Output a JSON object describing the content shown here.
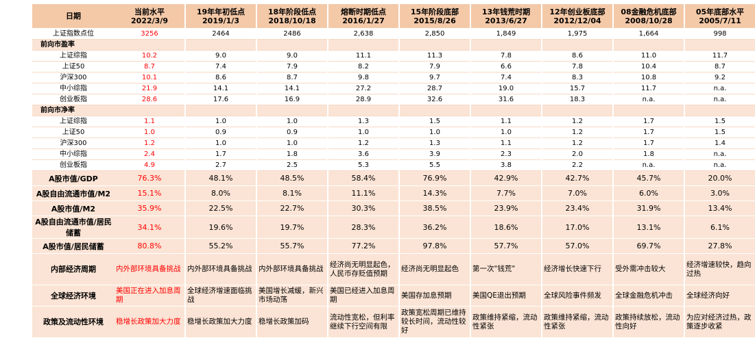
{
  "header": {
    "label": "日期",
    "columns": [
      {
        "name": "当前水平",
        "date": "2022/3/9"
      },
      {
        "name": "19年年初低点",
        "date": "2019/1/3"
      },
      {
        "name": "18年阶段低点",
        "date": "2018/10/18"
      },
      {
        "name": "熔断时期低点",
        "date": "2016/1/27"
      },
      {
        "name": "15年阶段底部",
        "date": "2015/8/26"
      },
      {
        "name": "13年钱荒时期",
        "date": "2013/6/27"
      },
      {
        "name": "12年创业板底部",
        "date": "2012/12/04"
      },
      {
        "name": "08金融危机底部",
        "date": "2008/10/28"
      },
      {
        "name": "05年底部水平",
        "date": "2005/7/11"
      }
    ]
  },
  "rows": [
    {
      "kind": "sm",
      "label": "上证指数点位",
      "values": [
        "3256",
        "2464",
        "2486",
        "2,638",
        "2,850",
        "1,849",
        "1,975",
        "1,664",
        "998"
      ]
    },
    {
      "kind": "sec",
      "label": "前向市盈率",
      "values": [
        "",
        "",
        "",
        "",
        "",
        "",
        "",
        "",
        ""
      ]
    },
    {
      "kind": "sm",
      "label": "上证综指",
      "values": [
        "10.2",
        "9.0",
        "9.0",
        "11.1",
        "11.3",
        "7.8",
        "8.6",
        "11.0",
        "11.7"
      ]
    },
    {
      "kind": "sm",
      "label": "上证50",
      "values": [
        "8.7",
        "7.4",
        "7.9",
        "8.2",
        "7.9",
        "6.6",
        "7.8",
        "10.4",
        "8.7"
      ]
    },
    {
      "kind": "sm",
      "label": "沪深300",
      "values": [
        "10.1",
        "8.6",
        "8.7",
        "9.8",
        "9.7",
        "7.4",
        "8.3",
        "10.8",
        "9.2"
      ]
    },
    {
      "kind": "sm",
      "label": "中小综指",
      "values": [
        "21.9",
        "14.1",
        "14.1",
        "27.2",
        "28.7",
        "19.0",
        "15.7",
        "11.7",
        "n.a."
      ]
    },
    {
      "kind": "sm",
      "label": "创业板指",
      "values": [
        "28.6",
        "17.6",
        "16.9",
        "28.9",
        "32.6",
        "31.6",
        "18.3",
        "n.a.",
        "n.a."
      ]
    },
    {
      "kind": "sec",
      "label": "前向市净率",
      "values": [
        "",
        "",
        "",
        "",
        "",
        "",
        "",
        "",
        ""
      ]
    },
    {
      "kind": "sm",
      "label": "上证综指",
      "values": [
        "1.1",
        "1.0",
        "1.0",
        "1.3",
        "1.5",
        "1.1",
        "1.2",
        "1.7",
        "1.5"
      ]
    },
    {
      "kind": "sm",
      "label": "上证50",
      "values": [
        "1.0",
        "0.9",
        "0.9",
        "1.0",
        "1.0",
        "1.0",
        "1.2",
        "1.7",
        "1.5"
      ]
    },
    {
      "kind": "sm",
      "label": "沪深300",
      "values": [
        "1.2",
        "1.0",
        "1.0",
        "1.2",
        "1.3",
        "1.1",
        "1.2",
        "1.7",
        "1.4"
      ]
    },
    {
      "kind": "sm",
      "label": "中小综指",
      "values": [
        "2.4",
        "1.7",
        "1.8",
        "3.6",
        "3.9",
        "2.3",
        "2.0",
        "1.8",
        "n.a."
      ]
    },
    {
      "kind": "sm",
      "label": "创业板指",
      "values": [
        "4.9",
        "2.7",
        "2.5",
        "5.3",
        "5.5",
        "3.8",
        "2.2",
        "n.a.",
        "n.a."
      ]
    },
    {
      "kind": "med",
      "label": "A股市值/GDP",
      "values": [
        "76.3%",
        "48.1%",
        "48.5%",
        "58.4%",
        "76.9%",
        "42.9%",
        "42.7%",
        "45.7%",
        "20.0%"
      ]
    },
    {
      "kind": "med",
      "label": "A股自由流通市值/M2",
      "values": [
        "15.1%",
        "8.0%",
        "8.1%",
        "11.1%",
        "14.3%",
        "7.7%",
        "7.0%",
        "6.0%",
        "3.0%"
      ]
    },
    {
      "kind": "med",
      "label": "A股市值/M2",
      "values": [
        "35.9%",
        "22.5%",
        "22.7%",
        "30.3%",
        "38.5%",
        "23.9%",
        "23.4%",
        "31.9%",
        "13.4%"
      ]
    },
    {
      "kind": "med",
      "label": "A股自由流通市值/居民储蓄",
      "values": [
        "34.1%",
        "19.6%",
        "19.7%",
        "28.3%",
        "36.2%",
        "18.6%",
        "17.0%",
        "13.1%",
        "6.1%"
      ]
    },
    {
      "kind": "med",
      "label": "A股市值/居民储蓄",
      "values": [
        "80.8%",
        "55.2%",
        "55.7%",
        "77.2%",
        "97.8%",
        "57.7%",
        "57.0%",
        "69.7%",
        "27.8%"
      ]
    },
    {
      "kind": "b1",
      "label": "内部经济周期",
      "values": [
        "内外部环境具备挑战",
        "内外部环境具备挑战",
        "内外部环境具备挑战",
        "经济尚无明显起色，人民币存贬值预期",
        "经济尚无明显起色",
        "第一次\"钱荒\"",
        "经济增长快速下行",
        "受外需冲击较大",
        "经济增速较快，趋向过热"
      ]
    },
    {
      "kind": "b2",
      "label": "全球经济环境",
      "values": [
        "美国正在进入加息周期",
        "全球经济增速面临挑战",
        "美国增长减缓，新兴市场动荡",
        "美国已经进入加息周期",
        "美国存加息预期",
        "美国QE退出预期",
        "全球风险事件频发",
        "全球金融危机冲击",
        "全球经济向好"
      ]
    },
    {
      "kind": "b3",
      "label": "政策及流动性环境",
      "values": [
        "稳增长政策加大力度",
        "稳增长政策加大力度",
        "稳增长政策加码",
        "流动性宽松，但利率继续下行空间有限",
        "政策宽松周期已维持较长时间，流动性较好",
        "政策维持紧缩，流动性紧张",
        "政策维持紧缩，流动性紧张",
        "政策持续放松，流动性向好",
        "为应对经济过热，政策逐步收紧"
      ]
    }
  ]
}
